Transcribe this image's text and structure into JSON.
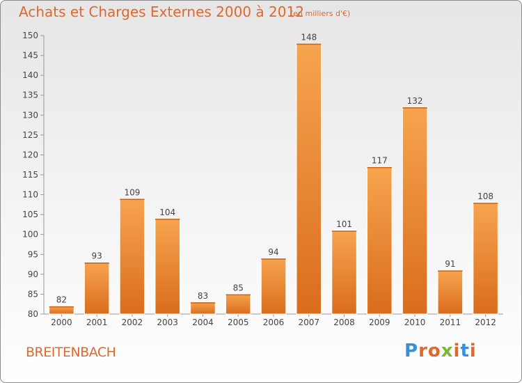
{
  "header": {
    "title": "Achats et Charges Externes 2000 à 2012",
    "subtitle": "(en milliers d'€)"
  },
  "footer": {
    "commune": "BREITENBACH",
    "logo_letters": [
      "P",
      "r",
      "o",
      "x",
      "i",
      "t",
      "i"
    ],
    "logo_colors": [
      "#3b8fd4",
      "#e0682a",
      "#e0682a",
      "#7ab833",
      "#e0682a",
      "#3b8fd4",
      "#e0682a"
    ]
  },
  "colors": {
    "bar_top": "#f7a44f",
    "bar_bottom": "#d96d1c",
    "axis": "#999999",
    "grid": "#c8c8c8",
    "text": "#444444"
  },
  "chart_data": {
    "type": "bar",
    "title": "Achats et Charges Externes 2000 à 2012",
    "xlabel": "",
    "ylabel": "",
    "categories": [
      "2000",
      "2001",
      "2002",
      "2003",
      "2004",
      "2005",
      "2006",
      "2007",
      "2008",
      "2009",
      "2010",
      "2011",
      "2012"
    ],
    "values": [
      82,
      93,
      109,
      104,
      83,
      85,
      94,
      148,
      101,
      117,
      132,
      91,
      108
    ],
    "ylim": [
      80,
      150
    ],
    "yticks": [
      80,
      85,
      90,
      95,
      100,
      105,
      110,
      115,
      120,
      125,
      130,
      135,
      140,
      145,
      150
    ],
    "data_labels": true,
    "grid": false
  }
}
